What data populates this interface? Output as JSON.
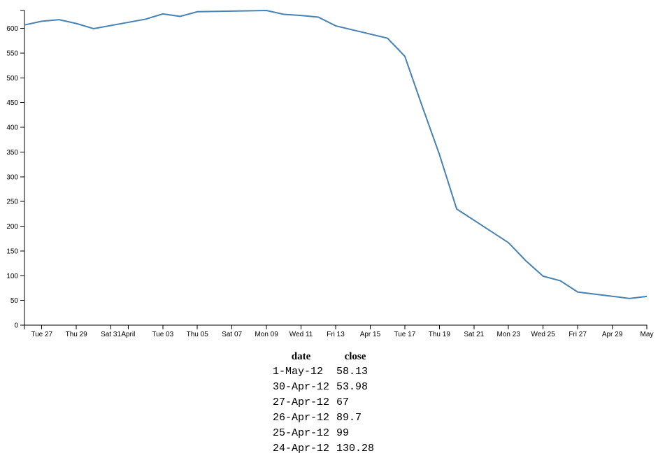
{
  "chart_data": {
    "type": "line",
    "x": [
      "2012-03-26",
      "2012-03-27",
      "2012-03-28",
      "2012-03-29",
      "2012-03-30",
      "2012-04-02",
      "2012-04-03",
      "2012-04-04",
      "2012-04-05",
      "2012-04-09",
      "2012-04-10",
      "2012-04-11",
      "2012-04-12",
      "2012-04-13",
      "2012-04-16",
      "2012-04-17",
      "2012-04-18",
      "2012-04-19",
      "2012-04-20",
      "2012-04-23",
      "2012-04-24",
      "2012-04-25",
      "2012-04-26",
      "2012-04-27",
      "2012-04-30",
      "2012-05-01"
    ],
    "series": [
      {
        "color": "#4682b4",
        "values": [
          606.98,
          614.48,
          617.62,
          609.86,
          599.55,
          618.63,
          629.32,
          624.31,
          633.68,
          636.23,
          628.44,
          626.2,
          622.77,
          605.23,
          580.13,
          543.7,
          443.34,
          345.44,
          234.98,
          166.7,
          130.28,
          99,
          89.7,
          67,
          53.98,
          58.13
        ]
      }
    ],
    "xlim": [
      "2012-03-26",
      "2012-05-01"
    ],
    "xticks": [
      {
        "value": "2012-03-27",
        "label": "Tue 27"
      },
      {
        "value": "2012-03-29",
        "label": "Thu 29"
      },
      {
        "value": "2012-03-31",
        "label": "Sat 31"
      },
      {
        "value": "2012-04-01",
        "label": "April"
      },
      {
        "value": "2012-04-03",
        "label": "Tue 03"
      },
      {
        "value": "2012-04-05",
        "label": "Thu 05"
      },
      {
        "value": "2012-04-07",
        "label": "Sat 07"
      },
      {
        "value": "2012-04-09",
        "label": "Mon 09"
      },
      {
        "value": "2012-04-11",
        "label": "Wed 11"
      },
      {
        "value": "2012-04-13",
        "label": "Fri 13"
      },
      {
        "value": "2012-04-15",
        "label": "Apr 15"
      },
      {
        "value": "2012-04-17",
        "label": "Tue 17"
      },
      {
        "value": "2012-04-19",
        "label": "Thu 19"
      },
      {
        "value": "2012-04-21",
        "label": "Sat 21"
      },
      {
        "value": "2012-04-23",
        "label": "Mon 23"
      },
      {
        "value": "2012-04-25",
        "label": "Wed 25"
      },
      {
        "value": "2012-04-27",
        "label": "Fri 27"
      },
      {
        "value": "2012-04-29",
        "label": "Apr 29"
      },
      {
        "value": "2012-05-01",
        "label": "May"
      }
    ],
    "ylim": [
      0,
      636.23
    ],
    "yticks": [
      0,
      50,
      100,
      150,
      200,
      250,
      300,
      350,
      400,
      450,
      500,
      550,
      600
    ]
  },
  "table": {
    "headers": [
      "date",
      "close"
    ],
    "rows": [
      [
        "1-May-12",
        "58.13"
      ],
      [
        "30-Apr-12",
        "53.98"
      ],
      [
        "27-Apr-12",
        "67"
      ],
      [
        "26-Apr-12",
        "89.7"
      ],
      [
        "25-Apr-12",
        "99"
      ],
      [
        "24-Apr-12",
        "130.28"
      ]
    ]
  }
}
